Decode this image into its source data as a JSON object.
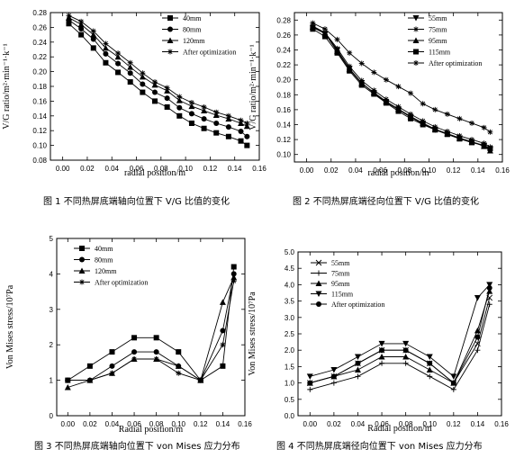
{
  "captions": [
    "图 1 不同热屏底端轴向位置下 V/G 比值的变化",
    "图 2 不同热屏底端径向位置下 V/G 比值的变化",
    "图 3 不同热屏底端轴向位置下 von Mises 应力分布",
    "图 4 不同热屏底端径向位置下 von Mises 应力分布"
  ],
  "chart_data": [
    {
      "type": "line",
      "xlabel": "radial position/m",
      "ylabel": "V/G ratio/m²·min⁻¹·k⁻¹",
      "xlim": [
        -0.01,
        0.16
      ],
      "ylim": [
        0.08,
        0.28
      ],
      "xticks": [
        "0.00",
        "0.02",
        "0.04",
        "0.06",
        "0.08",
        "0.10",
        "0.12",
        "0.14",
        "0.16"
      ],
      "yticks": [
        "0.08",
        "0.10",
        "0.12",
        "0.14",
        "0.16",
        "0.18",
        "0.20",
        "0.22",
        "0.24",
        "0.26",
        "0.28"
      ],
      "legend_position": "top-right",
      "x": [
        0.005,
        0.015,
        0.025,
        0.035,
        0.045,
        0.055,
        0.065,
        0.075,
        0.085,
        0.095,
        0.105,
        0.115,
        0.125,
        0.135,
        0.145,
        0.15
      ],
      "series": [
        {
          "name": "40mm",
          "marker": "square",
          "values": [
            0.265,
            0.25,
            0.232,
            0.212,
            0.199,
            0.186,
            0.172,
            0.16,
            0.152,
            0.14,
            0.13,
            0.123,
            0.117,
            0.112,
            0.106,
            0.1
          ]
        },
        {
          "name": "80mm",
          "marker": "circle",
          "values": [
            0.27,
            0.258,
            0.244,
            0.224,
            0.211,
            0.198,
            0.183,
            0.172,
            0.164,
            0.151,
            0.143,
            0.136,
            0.13,
            0.125,
            0.119,
            0.112
          ]
        },
        {
          "name": "120mm",
          "marker": "triangle",
          "values": [
            0.273,
            0.264,
            0.25,
            0.232,
            0.22,
            0.206,
            0.193,
            0.182,
            0.174,
            0.161,
            0.153,
            0.147,
            0.141,
            0.136,
            0.13,
            0.126
          ]
        },
        {
          "name": "After optimization",
          "marker": "star",
          "values": [
            0.276,
            0.268,
            0.255,
            0.238,
            0.225,
            0.212,
            0.198,
            0.186,
            0.178,
            0.166,
            0.158,
            0.152,
            0.145,
            0.14,
            0.134,
            0.13
          ]
        }
      ]
    },
    {
      "type": "line",
      "xlabel": "radial position/m",
      "ylabel": "V/G ratio/m²·min⁻¹·k⁻¹",
      "xlim": [
        -0.01,
        0.16
      ],
      "ylim": [
        0.09,
        0.29
      ],
      "xticks": [
        "0.00",
        "0.02",
        "0.04",
        "0.06",
        "0.08",
        "0.10",
        "0.12",
        "0.14",
        "0.16"
      ],
      "yticks": [
        "0.10",
        "0.12",
        "0.14",
        "0.16",
        "0.18",
        "0.20",
        "0.22",
        "0.24",
        "0.26",
        "0.28"
      ],
      "legend_position": "top-right",
      "x": [
        0.005,
        0.015,
        0.025,
        0.035,
        0.045,
        0.055,
        0.065,
        0.075,
        0.085,
        0.095,
        0.105,
        0.115,
        0.125,
        0.135,
        0.145,
        0.15
      ],
      "series": [
        {
          "name": "55mm",
          "marker": "triangle-down",
          "values": [
            0.27,
            0.262,
            0.24,
            0.215,
            0.196,
            0.182,
            0.17,
            0.16,
            0.15,
            0.141,
            0.133,
            0.128,
            0.122,
            0.117,
            0.112,
            0.107
          ]
        },
        {
          "name": "75mm",
          "marker": "star",
          "values": [
            0.272,
            0.263,
            0.242,
            0.218,
            0.199,
            0.186,
            0.174,
            0.164,
            0.154,
            0.145,
            0.137,
            0.131,
            0.125,
            0.12,
            0.115,
            0.11
          ]
        },
        {
          "name": "95mm",
          "marker": "triangle",
          "values": [
            0.271,
            0.262,
            0.238,
            0.214,
            0.195,
            0.183,
            0.171,
            0.161,
            0.151,
            0.142,
            0.134,
            0.128,
            0.122,
            0.117,
            0.111,
            0.105
          ]
        },
        {
          "name": "115mm",
          "marker": "square",
          "values": [
            0.268,
            0.258,
            0.236,
            0.212,
            0.193,
            0.181,
            0.169,
            0.158,
            0.148,
            0.14,
            0.133,
            0.127,
            0.121,
            0.116,
            0.112,
            0.108
          ]
        },
        {
          "name": "After optimization",
          "marker": "star",
          "values": [
            0.276,
            0.268,
            0.254,
            0.236,
            0.222,
            0.21,
            0.2,
            0.191,
            0.182,
            0.168,
            0.16,
            0.154,
            0.148,
            0.142,
            0.136,
            0.13
          ]
        }
      ]
    },
    {
      "type": "line",
      "xlabel": "Radial position/m",
      "ylabel": "Von Mises stress/10⁷Pa",
      "xlim": [
        -0.01,
        0.16
      ],
      "ylim": [
        0,
        5
      ],
      "xticks": [
        "0.00",
        "0.02",
        "0.04",
        "0.06",
        "0.08",
        "0.10",
        "0.12",
        "0.14",
        "0.16"
      ],
      "yticks": [
        "0",
        "1",
        "2",
        "3",
        "4",
        "5"
      ],
      "legend_position": "top-left",
      "x": [
        0.0,
        0.02,
        0.04,
        0.06,
        0.08,
        0.1,
        0.12,
        0.14,
        0.15
      ],
      "series": [
        {
          "name": "40mm",
          "marker": "square",
          "values": [
            1.0,
            1.4,
            1.8,
            2.2,
            2.2,
            1.8,
            1.0,
            1.4,
            4.2
          ]
        },
        {
          "name": "80mm",
          "marker": "circle",
          "values": [
            1.0,
            1.0,
            1.4,
            1.8,
            1.8,
            1.4,
            1.0,
            2.4,
            4.0
          ]
        },
        {
          "name": "120mm",
          "marker": "triangle",
          "values": [
            0.8,
            1.0,
            1.2,
            1.6,
            1.6,
            1.4,
            1.0,
            3.2,
            3.9
          ]
        },
        {
          "name": "After optimization",
          "marker": "star",
          "values": [
            1.0,
            1.0,
            1.2,
            1.6,
            1.6,
            1.2,
            1.0,
            2.0,
            3.8
          ]
        }
      ]
    },
    {
      "type": "line",
      "xlabel": "Radial position/m",
      "ylabel": "Von Mises stress/10⁷Pa",
      "xlim": [
        -0.01,
        0.16
      ],
      "ylim": [
        0,
        5
      ],
      "xticks": [
        "0.00",
        "0.02",
        "0.04",
        "0.06",
        "0.08",
        "0.10",
        "0.12",
        "0.14",
        "0.16"
      ],
      "yticks": [
        "0.0",
        "0.5",
        "1.0",
        "1.5",
        "2.0",
        "2.5",
        "3.0",
        "3.5",
        "4.0",
        "4.5",
        "5.0"
      ],
      "legend_position": "top-left",
      "x": [
        0.0,
        0.02,
        0.04,
        0.06,
        0.08,
        0.1,
        0.12,
        0.14,
        0.15
      ],
      "series": [
        {
          "name": "55mm",
          "marker": "x",
          "values": [
            1.0,
            1.2,
            1.6,
            2.0,
            2.0,
            1.6,
            1.0,
            2.2,
            3.6
          ]
        },
        {
          "name": "75mm",
          "marker": "plus",
          "values": [
            0.8,
            1.0,
            1.2,
            1.6,
            1.6,
            1.2,
            0.8,
            2.0,
            3.4
          ]
        },
        {
          "name": "95mm",
          "marker": "triangle",
          "values": [
            1.0,
            1.2,
            1.4,
            1.8,
            1.8,
            1.4,
            1.0,
            2.6,
            3.8
          ]
        },
        {
          "name": "115mm",
          "marker": "triangle-down",
          "values": [
            1.2,
            1.4,
            1.8,
            2.2,
            2.2,
            1.8,
            1.2,
            3.6,
            4.0
          ]
        },
        {
          "name": "After optimization",
          "marker": "circle",
          "values": [
            1.0,
            1.2,
            1.6,
            2.0,
            2.0,
            1.6,
            1.0,
            2.4,
            3.9
          ]
        }
      ]
    }
  ]
}
